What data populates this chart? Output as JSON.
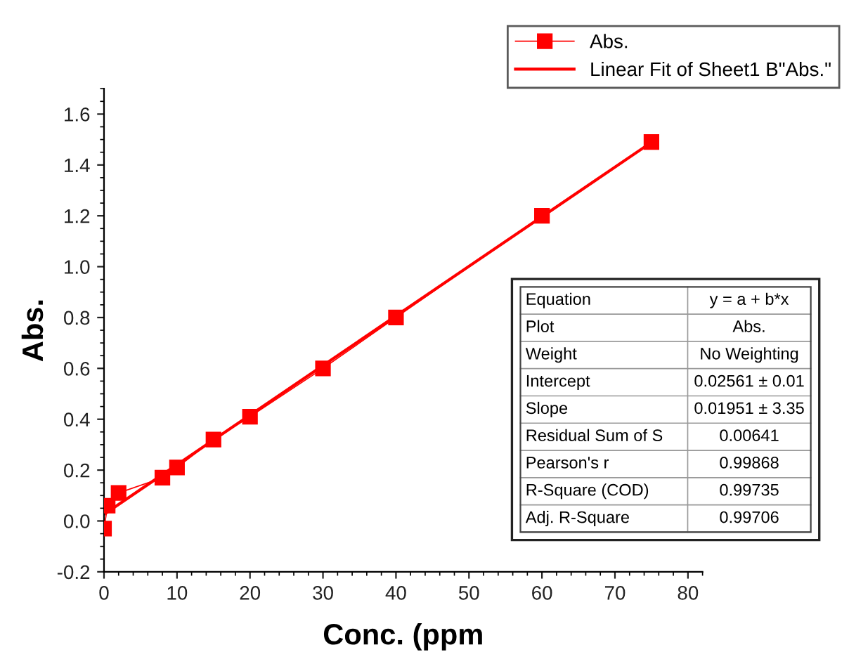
{
  "chart_data": {
    "type": "line",
    "xlabel": "Conc. (ppm",
    "ylabel": "Abs.",
    "x": [
      0,
      0.5,
      2,
      8,
      10,
      15,
      20,
      30,
      40,
      60,
      75
    ],
    "series": [
      {
        "name": "Abs.",
        "color": "#ff0000",
        "marker": "square",
        "values": [
          -0.03,
          0.06,
          0.11,
          0.17,
          0.21,
          0.32,
          0.41,
          0.6,
          0.8,
          1.2,
          1.49
        ]
      },
      {
        "name": "Linear Fit of Sheet1 B\"Abs.\"",
        "color": "#ff0000",
        "marker": "none",
        "x": [
          0,
          75
        ],
        "values": [
          0.026,
          1.489
        ]
      }
    ],
    "xlim": [
      0,
      82
    ],
    "ylim": [
      -0.2,
      1.7
    ],
    "xticks": [
      0,
      10,
      20,
      30,
      40,
      50,
      60,
      70,
      80
    ],
    "yticks": [
      -0.2,
      {
        "value": 0,
        "label": "0.0"
      },
      0.2,
      0.4,
      0.6,
      0.8,
      {
        "value": 1,
        "label": "1.0"
      },
      1.2,
      1.4,
      1.6
    ],
    "grid": false,
    "legend": "top right",
    "annotations": [
      "Equation",
      "y = a + b*x",
      "Plot",
      "Abs.",
      "Weight",
      "No Weighting",
      "Intercept",
      "0.02561 ± 0.01",
      "Slope",
      "0.01951 ± 3.35",
      "Residual Sum of S",
      "0.00641",
      "Pearson's r",
      "0.99868",
      "R-Square (COD)",
      "0.99735",
      "Adj. R-Square",
      "0.99706"
    ]
  }
}
